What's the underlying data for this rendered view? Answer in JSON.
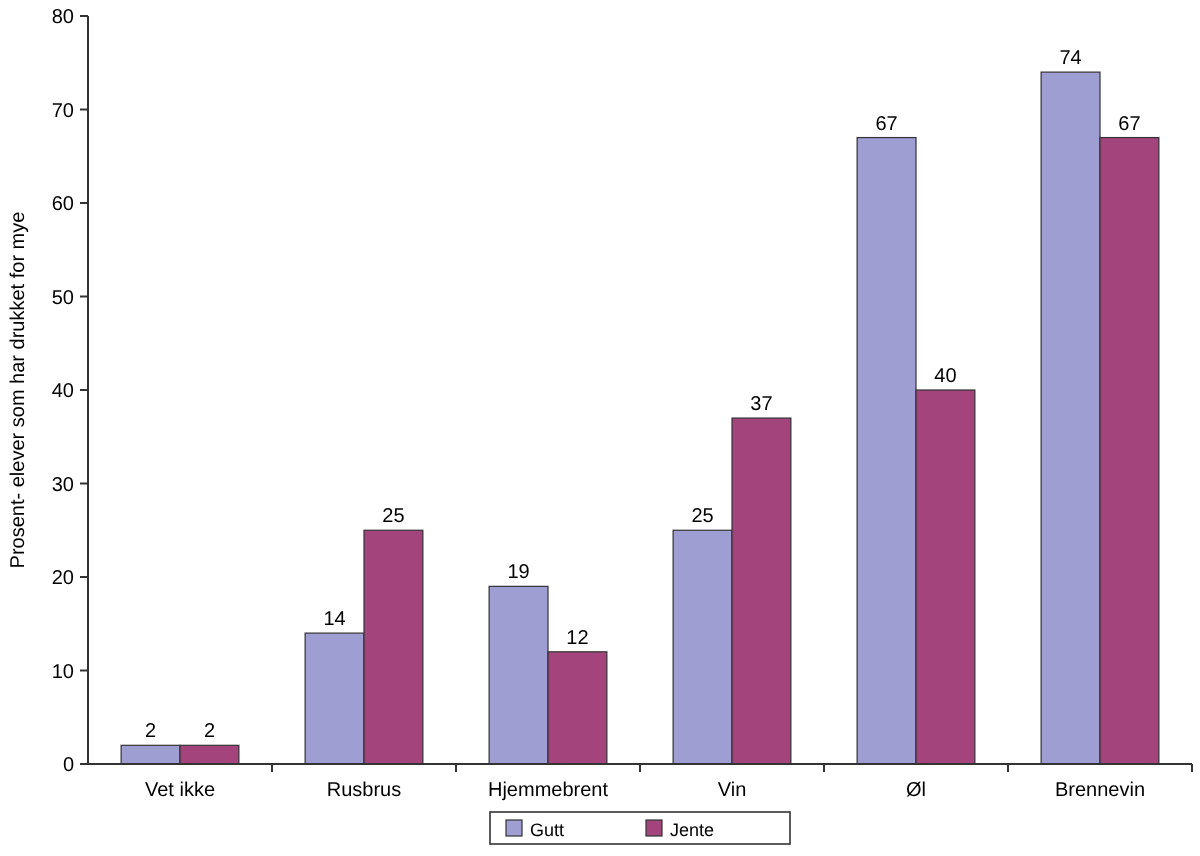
{
  "chart_data": {
    "type": "bar",
    "ylabel": "Prosent- elever som har drukket for mye",
    "categories": [
      "Vet ikke",
      "Rusbrus",
      "Hjemmebrent",
      "Vin",
      "Øl",
      "Brennevin"
    ],
    "series": [
      {
        "name": "Gutt",
        "color": "#9e9ed2",
        "values": [
          2,
          14,
          19,
          25,
          67,
          74
        ]
      },
      {
        "name": "Jente",
        "color": "#a3457c",
        "values": [
          2,
          25,
          12,
          37,
          40,
          67
        ]
      }
    ],
    "ylim": [
      0,
      80
    ],
    "yticks": [
      0,
      10,
      20,
      30,
      40,
      50,
      60,
      70,
      80
    ],
    "data_labels": true,
    "legend": "bottom",
    "grid": false
  }
}
